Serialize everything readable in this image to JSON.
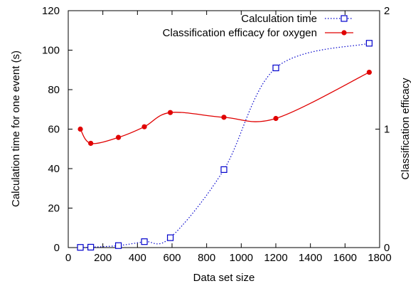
{
  "chart_data": {
    "type": "line",
    "title": "",
    "xlabel": "Data set size",
    "ylabel": "Calculation time for one event (s)",
    "y2label": "Classification efficacy",
    "xlim": [
      0,
      1800
    ],
    "ylim": [
      0,
      120
    ],
    "y2lim": [
      0,
      2
    ],
    "xticks": [
      0,
      200,
      400,
      600,
      800,
      1000,
      1200,
      1400,
      1600,
      1800
    ],
    "yticks": [
      0,
      20,
      40,
      60,
      80,
      100,
      120
    ],
    "y2ticks": [
      0,
      1,
      2
    ],
    "grid": false,
    "legend_position": "top-right",
    "series": [
      {
        "name": "Calculation time",
        "axis": "left",
        "marker": "open-square",
        "line": "dotted-smooth",
        "color": "#0000cc",
        "x": [
          70,
          130,
          290,
          440,
          590,
          900,
          1200,
          1740
        ],
        "y": [
          0.1,
          0.2,
          1.0,
          3.0,
          5.0,
          39.5,
          91.0,
          103.5
        ]
      },
      {
        "name": "Classification efficacy for oxygen",
        "axis": "right",
        "marker": "filled-circle",
        "line": "solid-smooth",
        "color": "#e00000",
        "x": [
          70,
          130,
          290,
          440,
          590,
          900,
          1200,
          1740
        ],
        "y": [
          1.0,
          0.88,
          0.93,
          1.02,
          1.14,
          1.1,
          1.09,
          1.48
        ]
      }
    ]
  }
}
